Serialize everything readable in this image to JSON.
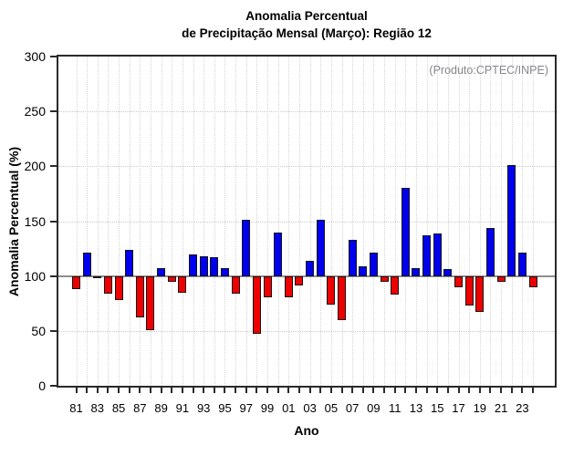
{
  "title": {
    "line1": "Anomalia Percentual",
    "line2": "de Precipitação Mensal (Março): Região 12"
  },
  "annotation": "(Produto:CPTEC/INPE)",
  "axes": {
    "y_label": "Anomalia Percentual (%)",
    "x_label": "Ano",
    "y_ticks": [
      0,
      50,
      100,
      150,
      200,
      250,
      300
    ],
    "x_tick_labels": [
      "81",
      "83",
      "85",
      "87",
      "89",
      "91",
      "93",
      "95",
      "97",
      "99",
      "01",
      "03",
      "05",
      "07",
      "09",
      "11",
      "13",
      "15",
      "17",
      "19",
      "21",
      "23"
    ]
  },
  "colors": {
    "above_baseline": "#0000ee",
    "below_baseline": "#ee0000",
    "bar_outline": "#141414",
    "baseline_line": "#8f8f8f",
    "annotation_text": "#85858d"
  },
  "chart_data": {
    "type": "bar",
    "title": "Anomalia Percentual de Precipitação Mensal (Março): Região 12",
    "xlabel": "Ano",
    "ylabel": "Anomalia Percentual (%)",
    "ylim": [
      0,
      300
    ],
    "baseline": 100,
    "grid": true,
    "x": [
      1981,
      1982,
      1983,
      1984,
      1985,
      1986,
      1987,
      1988,
      1989,
      1990,
      1991,
      1992,
      1993,
      1994,
      1995,
      1996,
      1997,
      1998,
      1999,
      2000,
      2001,
      2002,
      2003,
      2004,
      2005,
      2006,
      2007,
      2008,
      2009,
      2010,
      2011,
      2012,
      2013,
      2014,
      2015,
      2016,
      2017,
      2018,
      2019,
      2020,
      2021,
      2022,
      2023,
      2024
    ],
    "values": [
      88,
      121,
      100,
      84,
      78,
      124,
      62,
      51,
      107,
      95,
      85,
      120,
      118,
      117,
      107,
      84,
      151,
      47,
      81,
      140,
      81,
      91,
      114,
      151,
      74,
      60,
      133,
      109,
      121,
      95,
      83,
      180,
      107,
      137,
      139,
      106,
      90,
      73,
      67,
      144,
      95,
      201,
      121,
      90
    ]
  }
}
